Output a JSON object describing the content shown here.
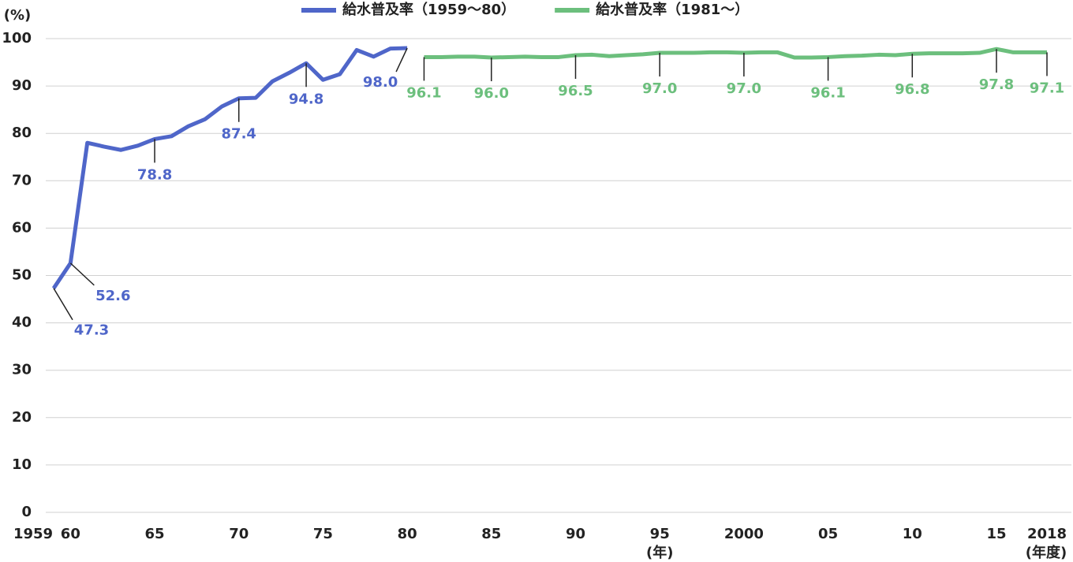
{
  "chart_data": {
    "type": "line",
    "ylabel": "(%)",
    "xlabel": "(年度)",
    "annotations": [
      {
        "x": 1995,
        "text": "(年)"
      }
    ],
    "xlim": [
      1959,
      2018
    ],
    "xticks": [
      1959,
      {
        "value": 1960,
        "label": "60"
      },
      {
        "value": 1965,
        "label": "65"
      },
      {
        "value": 1970,
        "label": "70"
      },
      {
        "value": 1975,
        "label": "75"
      },
      {
        "value": 1980,
        "label": "80"
      },
      {
        "value": 1985,
        "label": "85"
      },
      {
        "value": 1990,
        "label": "90"
      },
      {
        "value": 1995,
        "label": "95"
      },
      2000,
      {
        "value": 2005,
        "label": "05"
      },
      {
        "value": 2010,
        "label": "10"
      },
      {
        "value": 2015,
        "label": "15"
      },
      2018
    ],
    "ylim": [
      0,
      100
    ],
    "yticks": [
      0,
      10,
      20,
      30,
      40,
      50,
      60,
      70,
      80,
      90,
      100
    ],
    "grid": true,
    "legend": "top",
    "series": [
      {
        "name": "給水普及率（1959～80）",
        "color": "#4f66c9",
        "x": [
          1959,
          1960,
          1961,
          1962,
          1963,
          1964,
          1965,
          1966,
          1967,
          1968,
          1969,
          1970,
          1971,
          1972,
          1973,
          1974,
          1975,
          1976,
          1977,
          1978,
          1979,
          1980
        ],
        "values": [
          47.3,
          52.6,
          78.0,
          77.2,
          76.5,
          77.4,
          78.8,
          79.4,
          81.5,
          83.0,
          85.7,
          87.4,
          87.5,
          91.0,
          92.8,
          94.8,
          91.3,
          92.5,
          97.6,
          96.2,
          97.9,
          98.0
        ],
        "value_labels": [
          "47.3",
          "52.6",
          null,
          null,
          null,
          null,
          "78.8",
          null,
          null,
          null,
          null,
          "87.4",
          null,
          null,
          null,
          "94.8",
          null,
          null,
          null,
          null,
          null,
          "98.0"
        ]
      },
      {
        "name": "給水普及率（1981～）",
        "color": "#6cbf7d",
        "x": [
          1981,
          1982,
          1983,
          1984,
          1985,
          1986,
          1987,
          1988,
          1989,
          1990,
          1991,
          1992,
          1993,
          1994,
          1995,
          1996,
          1997,
          1998,
          1999,
          2000,
          2001,
          2002,
          2003,
          2004,
          2005,
          2006,
          2007,
          2008,
          2009,
          2010,
          2011,
          2012,
          2013,
          2014,
          2015,
          2016,
          2017,
          2018
        ],
        "values": [
          96.1,
          96.1,
          96.2,
          96.2,
          96.0,
          96.1,
          96.2,
          96.1,
          96.1,
          96.5,
          96.6,
          96.3,
          96.5,
          96.7,
          97.0,
          97.0,
          97.0,
          97.1,
          97.1,
          97.0,
          97.1,
          97.1,
          96.0,
          96.0,
          96.1,
          96.3,
          96.4,
          96.6,
          96.5,
          96.8,
          96.9,
          96.9,
          96.9,
          97.0,
          97.8,
          97.1,
          97.1,
          97.1
        ],
        "value_labels": [
          "96.1",
          null,
          null,
          null,
          "96.0",
          null,
          null,
          null,
          null,
          "96.5",
          null,
          null,
          null,
          null,
          "97.0",
          null,
          null,
          null,
          null,
          "97.0",
          null,
          null,
          null,
          null,
          "96.1",
          null,
          null,
          null,
          null,
          "96.8",
          null,
          null,
          null,
          null,
          "97.8",
          null,
          null,
          "97.1"
        ]
      }
    ]
  }
}
